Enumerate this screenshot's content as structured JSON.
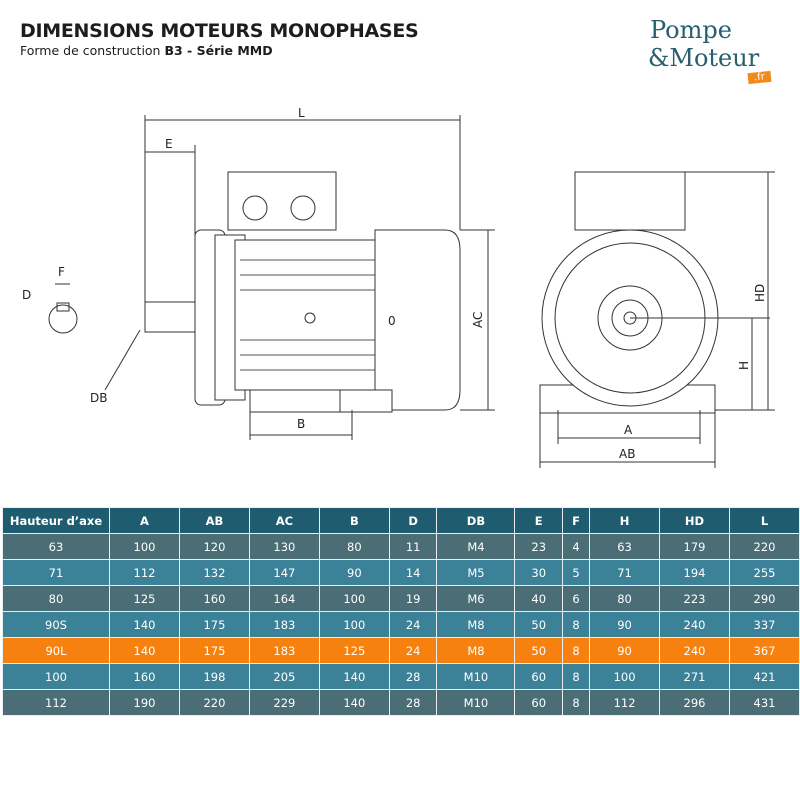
{
  "header": {
    "title": "DIMENSIONS MOTEURS MONOPHASES",
    "subtitle_prefix": "Forme de construction ",
    "subtitle_bold": "B3 - Série MMD"
  },
  "logo": {
    "line1": "Pompe",
    "line2": "&Moteur",
    "suffix": ".fr"
  },
  "diagram": {
    "labels": {
      "L": "L",
      "E": "E",
      "F": "F",
      "D": "D",
      "DB": "DB",
      "B": "B",
      "AC": "AC",
      "HD": "HD",
      "H": "H",
      "A": "A",
      "AB": "AB",
      "zero": "0"
    }
  },
  "colors": {
    "header": "#1f5c70",
    "row_dark": "#4b6d76",
    "row_light": "#3b8299",
    "highlight": "#f7810f"
  },
  "table": {
    "columns": [
      "Hauteur d’axe",
      "A",
      "AB",
      "AC",
      "B",
      "D",
      "DB",
      "E",
      "F",
      "H",
      "HD",
      "L"
    ],
    "rows": [
      [
        "63",
        "100",
        "120",
        "130",
        "80",
        "11",
        "M4",
        "23",
        "4",
        "63",
        "179",
        "220"
      ],
      [
        "71",
        "112",
        "132",
        "147",
        "90",
        "14",
        "M5",
        "30",
        "5",
        "71",
        "194",
        "255"
      ],
      [
        "80",
        "125",
        "160",
        "164",
        "100",
        "19",
        "M6",
        "40",
        "6",
        "80",
        "223",
        "290"
      ],
      [
        "90S",
        "140",
        "175",
        "183",
        "100",
        "24",
        "M8",
        "50",
        "8",
        "90",
        "240",
        "337"
      ],
      [
        "90L",
        "140",
        "175",
        "183",
        "125",
        "24",
        "M8",
        "50",
        "8",
        "90",
        "240",
        "367"
      ],
      [
        "100",
        "160",
        "198",
        "205",
        "140",
        "28",
        "M10",
        "60",
        "8",
        "100",
        "271",
        "421"
      ],
      [
        "112",
        "190",
        "220",
        "229",
        "140",
        "28",
        "M10",
        "60",
        "8",
        "112",
        "296",
        "431"
      ]
    ],
    "highlighted_row": 4
  }
}
